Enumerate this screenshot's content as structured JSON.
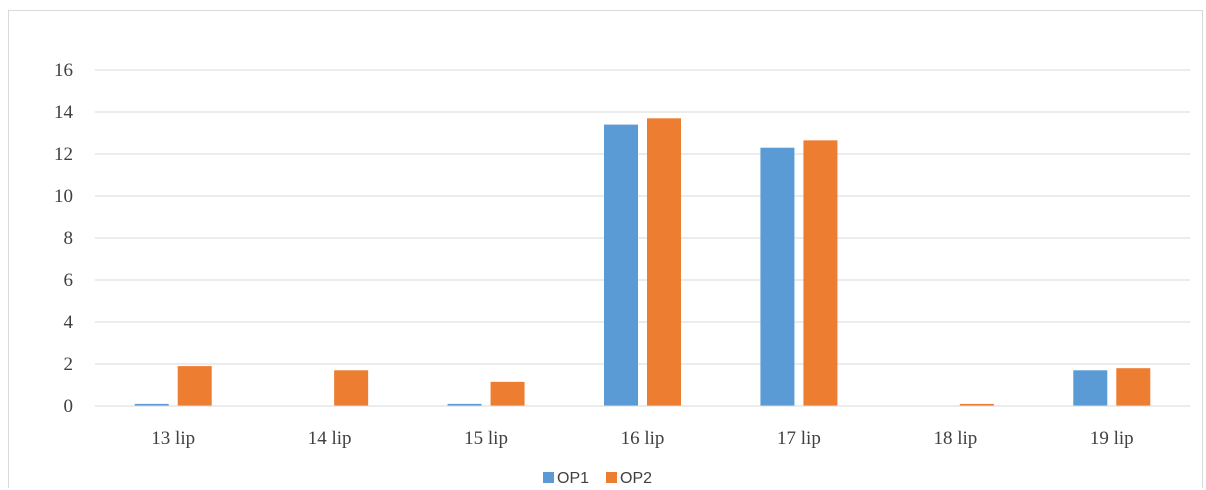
{
  "chart_data": {
    "type": "bar",
    "categories": [
      "13 lip",
      "14 lip",
      "15 lip",
      "16 lip",
      "17 lip",
      "18 lip",
      "19 lip"
    ],
    "series": [
      {
        "name": "OP1",
        "color": "#5b9bd5",
        "values": [
          0.1,
          0.0,
          0.1,
          13.4,
          12.3,
          0.0,
          1.7
        ]
      },
      {
        "name": "OP2",
        "color": "#ed7d31",
        "values": [
          1.9,
          1.7,
          1.15,
          13.7,
          12.65,
          0.1,
          1.8
        ]
      }
    ],
    "yticks": [
      "0",
      "2",
      "4",
      "6",
      "8",
      "10",
      "12",
      "14",
      "16"
    ],
    "ylim": [
      0,
      16
    ],
    "grid": true,
    "legend_position": "bottom"
  }
}
